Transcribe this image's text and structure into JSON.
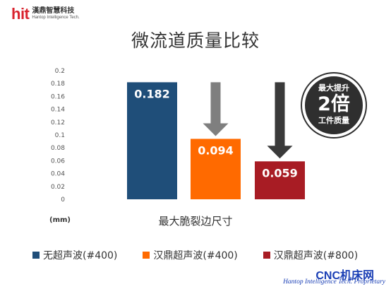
{
  "logo": {
    "mark": "hit",
    "name_cn": "漢鼎智慧科技",
    "name_en": "Hantop Intelligence Tech."
  },
  "chart_data": {
    "type": "bar",
    "title": "微流道质量比较",
    "xlabel": "最大脆裂边尺寸",
    "ylabel": "(mm)",
    "ylim": [
      0,
      0.2
    ],
    "yticks": [
      "0",
      "0.02",
      "0.04",
      "0.06",
      "0.08",
      "0.1",
      "0.12",
      "0.14",
      "0.16",
      "0.18",
      "0.2"
    ],
    "grid": false,
    "legend_position": "bottom",
    "series": [
      {
        "name": "无超声波(#400)",
        "value": 0.182,
        "label": "0.182",
        "color": "#1f4e79"
      },
      {
        "name": "汉鼎超声波(#400)",
        "value": 0.094,
        "label": "0.094",
        "color": "#ff6a00"
      },
      {
        "name": "汉鼎超声波(#800)",
        "value": 0.059,
        "label": "0.059",
        "color": "#a81c24"
      }
    ],
    "arrow_colors": [
      "#7f7f7f",
      "#3a3a3a"
    ]
  },
  "badge": {
    "line1": "最大提升",
    "line2": "2倍",
    "line3": "工件质量"
  },
  "watermark": {
    "line1": "CNC机床网",
    "line2": "Hantop Intelligence Tech. Proprietary"
  }
}
